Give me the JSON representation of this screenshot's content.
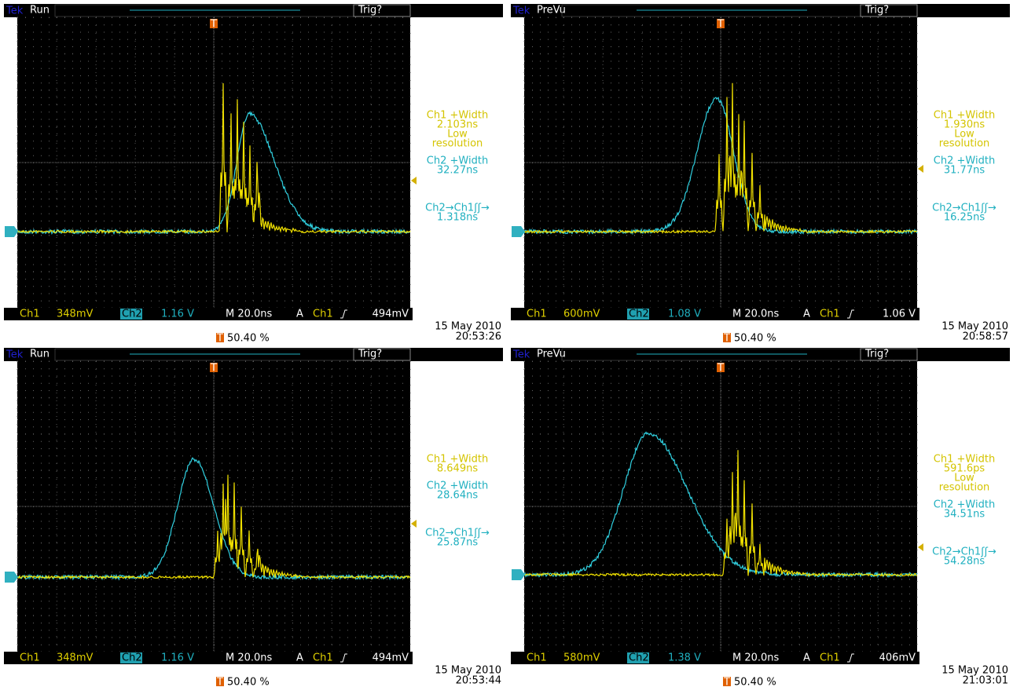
{
  "brand": "Tek",
  "ch1_label": "Ch1",
  "ch2_label": "Ch2",
  "trigger_label": "A",
  "trigger_marker": "T",
  "panels": [
    {
      "status": "Run",
      "trig": "Trig?",
      "ch1_scale": "348mV",
      "ch2_scale": "1.16 V",
      "timebase": "M 20.0ns",
      "trigger_channel": "Ch1",
      "trigger_level": "494mV",
      "trigger_position": "50.40 %",
      "date": "15 May 2010",
      "time": "20:53:26",
      "measurements": [
        {
          "color": "#d4c400",
          "lines": [
            "Ch1 +Width",
            "2.103ns",
            "Low",
            "resolution"
          ]
        },
        {
          "color": "#20b0c0",
          "lines": [
            "Ch2 +Width",
            "32.27ns"
          ]
        },
        {
          "color": "#20b0c0",
          "lines": [
            "Ch2→Ch1ʃʃ→",
            "1.318ns"
          ]
        }
      ]
    },
    {
      "status": "PreVu",
      "trig": "Trig?",
      "ch1_scale": "600mV",
      "ch2_scale": "1.08 V",
      "timebase": "M 20.0ns",
      "trigger_channel": "Ch1",
      "trigger_level": "1.06 V",
      "trigger_position": "50.40 %",
      "date": "15 May 2010",
      "time": "20:58:57",
      "measurements": [
        {
          "color": "#d4c400",
          "lines": [
            "Ch1 +Width",
            "1.930ns",
            "Low",
            "resolution"
          ]
        },
        {
          "color": "#20b0c0",
          "lines": [
            "Ch2 +Width",
            "31.77ns"
          ]
        },
        {
          "color": "#20b0c0",
          "lines": [
            "Ch2→Ch1ʃʃ→",
            "16.25ns"
          ]
        }
      ]
    },
    {
      "status": "Run",
      "trig": "Trig?",
      "ch1_scale": "348mV",
      "ch2_scale": "1.16 V",
      "timebase": "M 20.0ns",
      "trigger_channel": "Ch1",
      "trigger_level": "494mV",
      "trigger_position": "50.40 %",
      "date": "15 May 2010",
      "time": "20:53:44",
      "measurements": [
        {
          "color": "#d4c400",
          "lines": [
            "Ch1 +Width",
            "8.649ns"
          ]
        },
        {
          "color": "#20b0c0",
          "lines": [
            "Ch2 +Width",
            "28.64ns"
          ]
        },
        {
          "color": "#20b0c0",
          "lines": [
            "Ch2→Ch1ʃʃ→",
            "25.87ns"
          ]
        }
      ]
    },
    {
      "status": "PreVu",
      "trig": "Trig?",
      "ch1_scale": "580mV",
      "ch2_scale": "1.38 V",
      "timebase": "M 20.0ns",
      "trigger_channel": "Ch1",
      "trigger_level": "406mV",
      "trigger_position": "50.40 %",
      "date": "15 May 2010",
      "time": "21:03:01",
      "measurements": [
        {
          "color": "#d4c400",
          "lines": [
            "Ch1 +Width",
            "591.6ps",
            "Low",
            "resolution"
          ]
        },
        {
          "color": "#20b0c0",
          "lines": [
            "Ch2 +Width",
            "34.51ns"
          ]
        },
        {
          "color": "#20b0c0",
          "lines": [
            "Ch2→Ch1ʃʃ→",
            "54.28ns"
          ]
        }
      ]
    }
  ]
}
